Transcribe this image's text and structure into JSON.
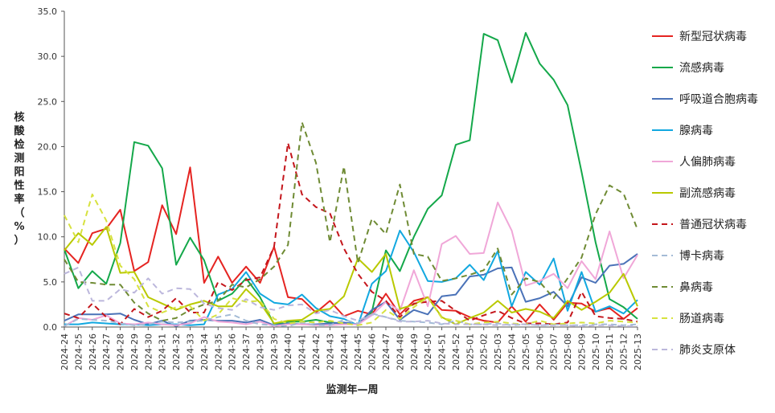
{
  "chart_data": {
    "type": "line",
    "title": "",
    "xlabel": "监测年—周",
    "ylabel": "核酸检测阳性率（%）",
    "ylim": [
      0,
      35
    ],
    "yticks": [
      "0.0",
      "5.0",
      "10.0",
      "15.0",
      "20.0",
      "25.0",
      "30.0",
      "35.0"
    ],
    "grid": false,
    "legend_position": "right",
    "categories": [
      "2024-24",
      "2024-25",
      "2024-26",
      "2024-27",
      "2024-28",
      "2024-29",
      "2024-30",
      "2024-31",
      "2024-32",
      "2024-33",
      "2024-34",
      "2024-35",
      "2024-36",
      "2024-37",
      "2024-38",
      "2024-39",
      "2024-40",
      "2024-41",
      "2024-42",
      "2024-43",
      "2024-44",
      "2024-45",
      "2024-46",
      "2024-47",
      "2024-48",
      "2024-49",
      "2024-50",
      "2024-51",
      "2024-52",
      "2025-01",
      "2025-02",
      "2025-03",
      "2025-04",
      "2025-05",
      "2025-06",
      "2025-07",
      "2025-08",
      "2025-09",
      "2025-10",
      "2025-11",
      "2025-12",
      "2025-13"
    ],
    "series": [
      {
        "name": "新型冠状病毒",
        "color": "#e52421",
        "dash": "solid",
        "values": [
          8.7,
          7.1,
          10.4,
          10.9,
          13.0,
          6.2,
          7.2,
          13.5,
          10.3,
          17.7,
          4.9,
          7.8,
          4.9,
          6.7,
          4.9,
          8.9,
          3.3,
          3.1,
          1.6,
          2.9,
          1.2,
          1.8,
          1.4,
          3.7,
          1.4,
          2.9,
          3.3,
          1.9,
          1.8,
          1.1,
          0.7,
          0.5,
          2.3,
          0.6,
          2.5,
          0.8,
          2.7,
          2.6,
          1.7,
          2.1,
          0.9,
          2.1
        ]
      },
      {
        "name": "流感病毒",
        "color": "#14a84a",
        "dash": "solid",
        "values": [
          8.6,
          4.3,
          6.2,
          4.8,
          9.3,
          20.5,
          20.1,
          17.6,
          6.9,
          9.9,
          7.4,
          2.9,
          3.7,
          5.4,
          3.3,
          0.3,
          0.6,
          0.6,
          0.8,
          0.5,
          0.4,
          0.3,
          1.7,
          8.5,
          6.2,
          10.0,
          13.1,
          14.6,
          20.2,
          20.7,
          32.5,
          31.8,
          27.1,
          32.6,
          29.2,
          27.4,
          24.6,
          17.2,
          9.4,
          3.1,
          2.2,
          0.9
        ]
      },
      {
        "name": "呼吸道合胞病毒",
        "color": "#4a72b8",
        "dash": "solid",
        "values": [
          0.7,
          1.4,
          1.4,
          1.4,
          1.5,
          0.8,
          0.3,
          0.7,
          0.1,
          0.7,
          0.8,
          0.7,
          0.7,
          0.5,
          0.8,
          0.2,
          0.4,
          0.3,
          0.3,
          0.4,
          0.5,
          0.3,
          1.9,
          2.8,
          0.8,
          1.9,
          1.4,
          3.4,
          3.6,
          5.6,
          5.8,
          6.5,
          6.6,
          2.8,
          3.2,
          3.9,
          2.3,
          5.5,
          4.9,
          6.8,
          7.0,
          8.1
        ]
      },
      {
        "name": "腺病毒",
        "color": "#12a8e0",
        "dash": "solid",
        "values": [
          0.3,
          0.3,
          0.5,
          0.4,
          0.3,
          0.3,
          0.2,
          0.3,
          0.3,
          0.2,
          0.3,
          3.6,
          4.2,
          6.1,
          3.7,
          2.7,
          2.5,
          3.6,
          2.1,
          1.2,
          0.9,
          0.2,
          4.8,
          6.2,
          10.7,
          8.3,
          5.1,
          5.0,
          5.4,
          6.9,
          5.2,
          8.4,
          2.3,
          6.1,
          4.7,
          7.6,
          1.8,
          6.1,
          1.7,
          2.3,
          1.5,
          3.0
        ]
      },
      {
        "name": "人偏肺病毒",
        "color": "#f0a7d8",
        "dash": "solid",
        "values": [
          0.1,
          1.0,
          0.8,
          1.3,
          0.4,
          0.3,
          0.5,
          0.3,
          0.2,
          0.4,
          1.1,
          0.6,
          0.5,
          0.3,
          0.6,
          0.1,
          0.3,
          0.3,
          0.2,
          0.2,
          0.3,
          0.3,
          1.3,
          2.8,
          1.8,
          6.3,
          2.3,
          9.2,
          10.1,
          8.1,
          8.2,
          13.8,
          10.7,
          4.6,
          5.1,
          5.9,
          4.3,
          7.3,
          5.3,
          10.6,
          5.4,
          8.0
        ]
      },
      {
        "name": "副流感病毒",
        "color": "#b9c900",
        "dash": "solid",
        "values": [
          8.5,
          10.4,
          9.1,
          11.1,
          6.0,
          6.1,
          3.3,
          2.6,
          1.9,
          2.5,
          2.9,
          2.3,
          2.3,
          4.2,
          2.7,
          0.4,
          0.7,
          0.8,
          1.8,
          2.0,
          3.4,
          7.6,
          6.1,
          8.1,
          2.0,
          2.5,
          3.3,
          1.1,
          0.3,
          1.0,
          1.6,
          2.9,
          1.6,
          2.0,
          1.7,
          1.0,
          2.9,
          1.9,
          2.8,
          3.8,
          5.9,
          2.3
        ]
      },
      {
        "name": "普通冠状病毒",
        "color": "#c4161c",
        "dash": "long",
        "values": [
          1.5,
          1.0,
          2.6,
          1.1,
          0.3,
          2.0,
          1.1,
          1.8,
          3.2,
          1.6,
          1.6,
          5.0,
          4.1,
          5.2,
          5.5,
          8.9,
          20.4,
          14.7,
          13.3,
          12.6,
          8.7,
          5.9,
          3.9,
          2.9,
          1.1,
          2.6,
          2.8,
          2.9,
          1.8,
          0.7,
          1.3,
          1.8,
          1.0,
          0.4,
          0.4,
          0.3,
          0.5,
          3.9,
          1.2,
          1.0,
          0.9,
          0.6
        ]
      },
      {
        "name": "博卡病毒",
        "color": "#a4bbd6",
        "dash": "long",
        "values": [
          0.1,
          0.9,
          0.8,
          0.7,
          0.4,
          0.2,
          0.3,
          0.6,
          0.5,
          0.6,
          0.7,
          1.1,
          1.4,
          0.7,
          0.3,
          0.2,
          0.1,
          0.5,
          0.2,
          0.2,
          0.8,
          0.4,
          1.5,
          1.1,
          0.7,
          0.6,
          0.5,
          0.3,
          0.7,
          0.3,
          0.3,
          0.4,
          0.2,
          0.3,
          0.2,
          0.3,
          0.2,
          0.2,
          0.3,
          0.3,
          0.2,
          0.3
        ]
      },
      {
        "name": "鼻病毒",
        "color": "#6f8b34",
        "dash": "long",
        "values": [
          7.5,
          5.0,
          4.9,
          4.7,
          4.7,
          2.7,
          1.5,
          0.7,
          1.0,
          1.9,
          2.5,
          2.9,
          4.7,
          4.4,
          5.3,
          6.7,
          9.1,
          22.7,
          18.2,
          9.4,
          17.8,
          7.1,
          12.0,
          10.3,
          15.8,
          8.1,
          7.8,
          5.1,
          5.4,
          5.8,
          6.3,
          8.7,
          3.6,
          5.4,
          5.0,
          3.2,
          5.4,
          7.7,
          12.5,
          15.7,
          14.8,
          10.8
        ]
      },
      {
        "name": "肠道病毒",
        "color": "#d7e23f",
        "dash": "long",
        "values": [
          12.4,
          9.4,
          14.7,
          11.8,
          6.8,
          5.3,
          2.3,
          1.6,
          2.2,
          2.3,
          0.7,
          1.4,
          3.2,
          2.8,
          2.9,
          0.9,
          0.4,
          0.6,
          0.5,
          0.7,
          0.4,
          0.2,
          0.5,
          1.9,
          0.9,
          2.2,
          3.3,
          1.0,
          0.7,
          0.3,
          0.5,
          0.6,
          0.4,
          0.3,
          0.7,
          0.3,
          0.4,
          0.5,
          0.4,
          0.7,
          0.6,
          0.5
        ]
      },
      {
        "name": "肺炎支原体",
        "color": "#bcb7dc",
        "dash": "long",
        "values": [
          5.9,
          6.6,
          2.9,
          2.9,
          4.2,
          3.8,
          5.4,
          3.7,
          4.3,
          4.2,
          2.6,
          2.1,
          1.9,
          3.1,
          2.2,
          1.9,
          2.4,
          2.5,
          1.5,
          1.9,
          1.2,
          0.7,
          1.4,
          1.1,
          0.6,
          0.6,
          0.7,
          0.4,
          0.3,
          0.3,
          0.3,
          0.2,
          0.3,
          0.3,
          0.2,
          0.2,
          0.2,
          0.1,
          0.2,
          0.2,
          0.1,
          0.1
        ]
      }
    ]
  }
}
